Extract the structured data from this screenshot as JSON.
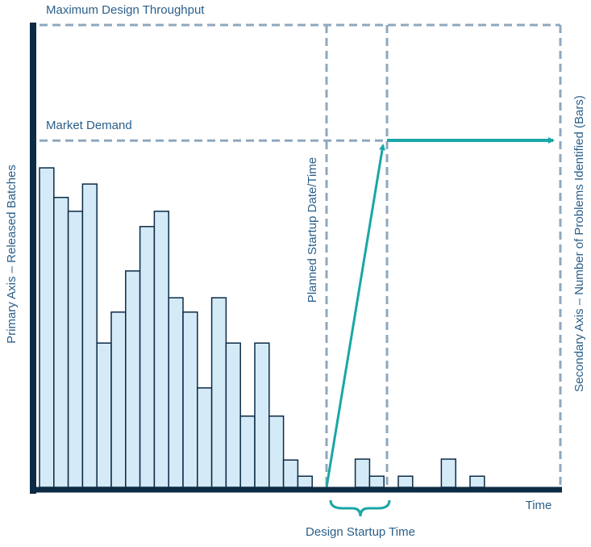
{
  "chart_data": {
    "type": "bar",
    "categories": [
      null,
      null,
      null,
      null,
      null,
      null,
      null,
      null,
      null,
      null,
      null,
      null,
      null,
      null,
      null,
      null,
      null,
      null,
      null,
      null,
      null,
      null,
      null,
      null,
      null,
      null,
      null,
      null,
      null,
      null,
      null
    ],
    "values": [
      69.1,
      62.7,
      59.7,
      65.6,
      31.2,
      37.9,
      46.8,
      56.4,
      59.7,
      41.0,
      37.9,
      21.5,
      41.0,
      31.2,
      15.4,
      31.2,
      15.4,
      5.9,
      2.4,
      null,
      null,
      null,
      6.1,
      2.4,
      null,
      2.4,
      null,
      null,
      6.1,
      null,
      2.4
    ],
    "color": "#d4eaf7",
    "ylim": [
      0,
      100
    ],
    "hlines": [
      {
        "label": "Maximum Design Throughput",
        "value": 100
      },
      {
        "label": "Market Demand",
        "value": 75
      }
    ],
    "y_label": "Primary Axis – Released Batches",
    "y2_label": "Secondary Axis – Number of Problems Identified (Bars)",
    "x_label": "Time",
    "annotations": [
      "Planned Startup Date/Time",
      "Design Startup Time"
    ]
  }
}
